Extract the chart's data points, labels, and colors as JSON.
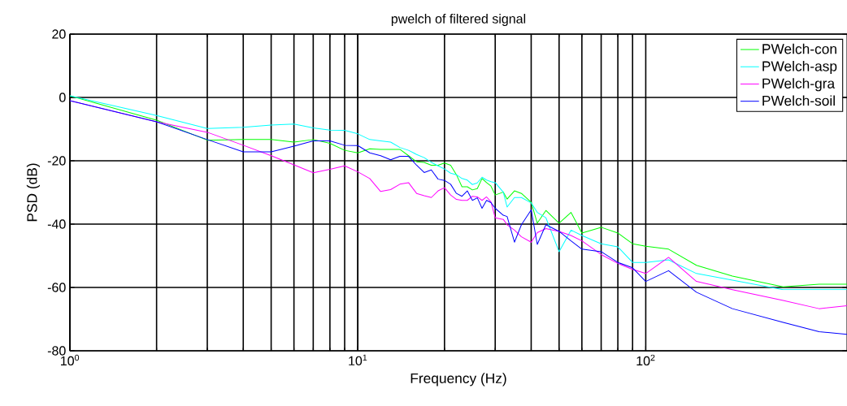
{
  "chart_data": {
    "type": "line",
    "title": "pwelch of filtered signal",
    "xlabel": "Frequency (Hz)",
    "ylabel": "PSD (dB)",
    "x": [
      1,
      2,
      3,
      4,
      5,
      6,
      7,
      8,
      9,
      10,
      11,
      12,
      13,
      14,
      15,
      16,
      17,
      18,
      19,
      20,
      21,
      22,
      23,
      24,
      25,
      26,
      27,
      28,
      29,
      30,
      32,
      33,
      35,
      37,
      40,
      42,
      45,
      50,
      55,
      60,
      70,
      80,
      90,
      100,
      120,
      150,
      200,
      300,
      400,
      500
    ],
    "series": [
      {
        "name": "PWelch-con",
        "color": "#00ff00",
        "values": [
          0.5,
          -7.2,
          -13.5,
          -13.3,
          -13.3,
          -14.1,
          -13.3,
          -14.5,
          -16.7,
          -17.5,
          -16.2,
          -16.4,
          -16.4,
          -16.4,
          -18.4,
          -20.3,
          -20.5,
          -21.4,
          -21.4,
          -20.7,
          -21.4,
          -24.4,
          -28.2,
          -28.2,
          -29.2,
          -28.8,
          -25.6,
          -26.9,
          -28.0,
          -30.8,
          -29.9,
          -32.1,
          -29.5,
          -30.3,
          -33.1,
          -39.7,
          -35.7,
          -39.7,
          -36.3,
          -42.8,
          -41,
          -42.8,
          -46.2,
          -47,
          -47.9,
          -53,
          -56.4,
          -59.8,
          -59,
          -59
        ]
      },
      {
        "name": "PWelch-asp",
        "color": "#00ffff",
        "values": [
          0.5,
          -5.7,
          -9.8,
          -9.4,
          -8.7,
          -8.4,
          -9.6,
          -10.3,
          -10.4,
          -11.5,
          -13.3,
          -13.7,
          -14.1,
          -15.8,
          -16.7,
          -18,
          -19,
          -20.5,
          -21.6,
          -22.6,
          -23.9,
          -24.4,
          -25.6,
          -26.1,
          -27.5,
          -27,
          -25.2,
          -26.1,
          -26.6,
          -26.9,
          -29.9,
          -34.6,
          -31.6,
          -31.6,
          -33.3,
          -36.3,
          -38,
          -48.7,
          -41.9,
          -43.6,
          -46.2,
          -47.2,
          -52.1,
          -52.1,
          -51.3,
          -55.6,
          -57.7,
          -60.7,
          -60.7,
          -60.7
        ]
      },
      {
        "name": "PWelch-gra",
        "color": "#ff00ff",
        "values": [
          -1,
          -7.7,
          -11,
          -15.1,
          -18.4,
          -21.3,
          -23.8,
          -22.7,
          -21.6,
          -23.5,
          -25.6,
          -29.7,
          -29.1,
          -27.4,
          -26.9,
          -30.3,
          -31,
          -31.6,
          -29.5,
          -28.5,
          -30.8,
          -32.2,
          -32.5,
          -32.5,
          -31.2,
          -31.4,
          -32.5,
          -31.4,
          -33,
          -38,
          -38.5,
          -40.2,
          -41.9,
          -44,
          -45.7,
          -42.7,
          -41.4,
          -42.3,
          -43.6,
          -45.3,
          -49.6,
          -52.4,
          -54.3,
          -55.6,
          -50.5,
          -58.1,
          -60.7,
          -64.1,
          -66.7,
          -65.8
        ]
      },
      {
        "name": "PWelch-soil",
        "color": "#0000ff",
        "values": [
          -1,
          -7.7,
          -13.3,
          -17.2,
          -17.2,
          -15.4,
          -13.7,
          -13.7,
          -15.1,
          -15.2,
          -17.5,
          -18.4,
          -19.7,
          -18.6,
          -18.6,
          -21.4,
          -23.7,
          -22.9,
          -25.8,
          -26.2,
          -27.4,
          -30.3,
          -31.2,
          -29.5,
          -32.5,
          -31.7,
          -35,
          -32.5,
          -33.2,
          -35,
          -37.2,
          -37.6,
          -45.7,
          -40.2,
          -35.5,
          -46.4,
          -40.2,
          -42.3,
          -45.3,
          -47.9,
          -48.7,
          -52.1,
          -53.8,
          -58.1,
          -54.7,
          -61.5,
          -66.7,
          -71,
          -74,
          -74.8
        ]
      }
    ],
    "xlim": [
      1,
      500
    ],
    "ylim": [
      -80,
      20
    ],
    "xticks": [
      {
        "value": 1,
        "label": "10$^{0}$"
      },
      {
        "value": 10,
        "label": "10$^{1}$"
      },
      {
        "value": 100,
        "label": "10$^{2}$"
      }
    ],
    "yticks": [
      -80,
      -60,
      -40,
      -20,
      0,
      20
    ],
    "log": "x",
    "grid": true,
    "legend": "top right"
  }
}
